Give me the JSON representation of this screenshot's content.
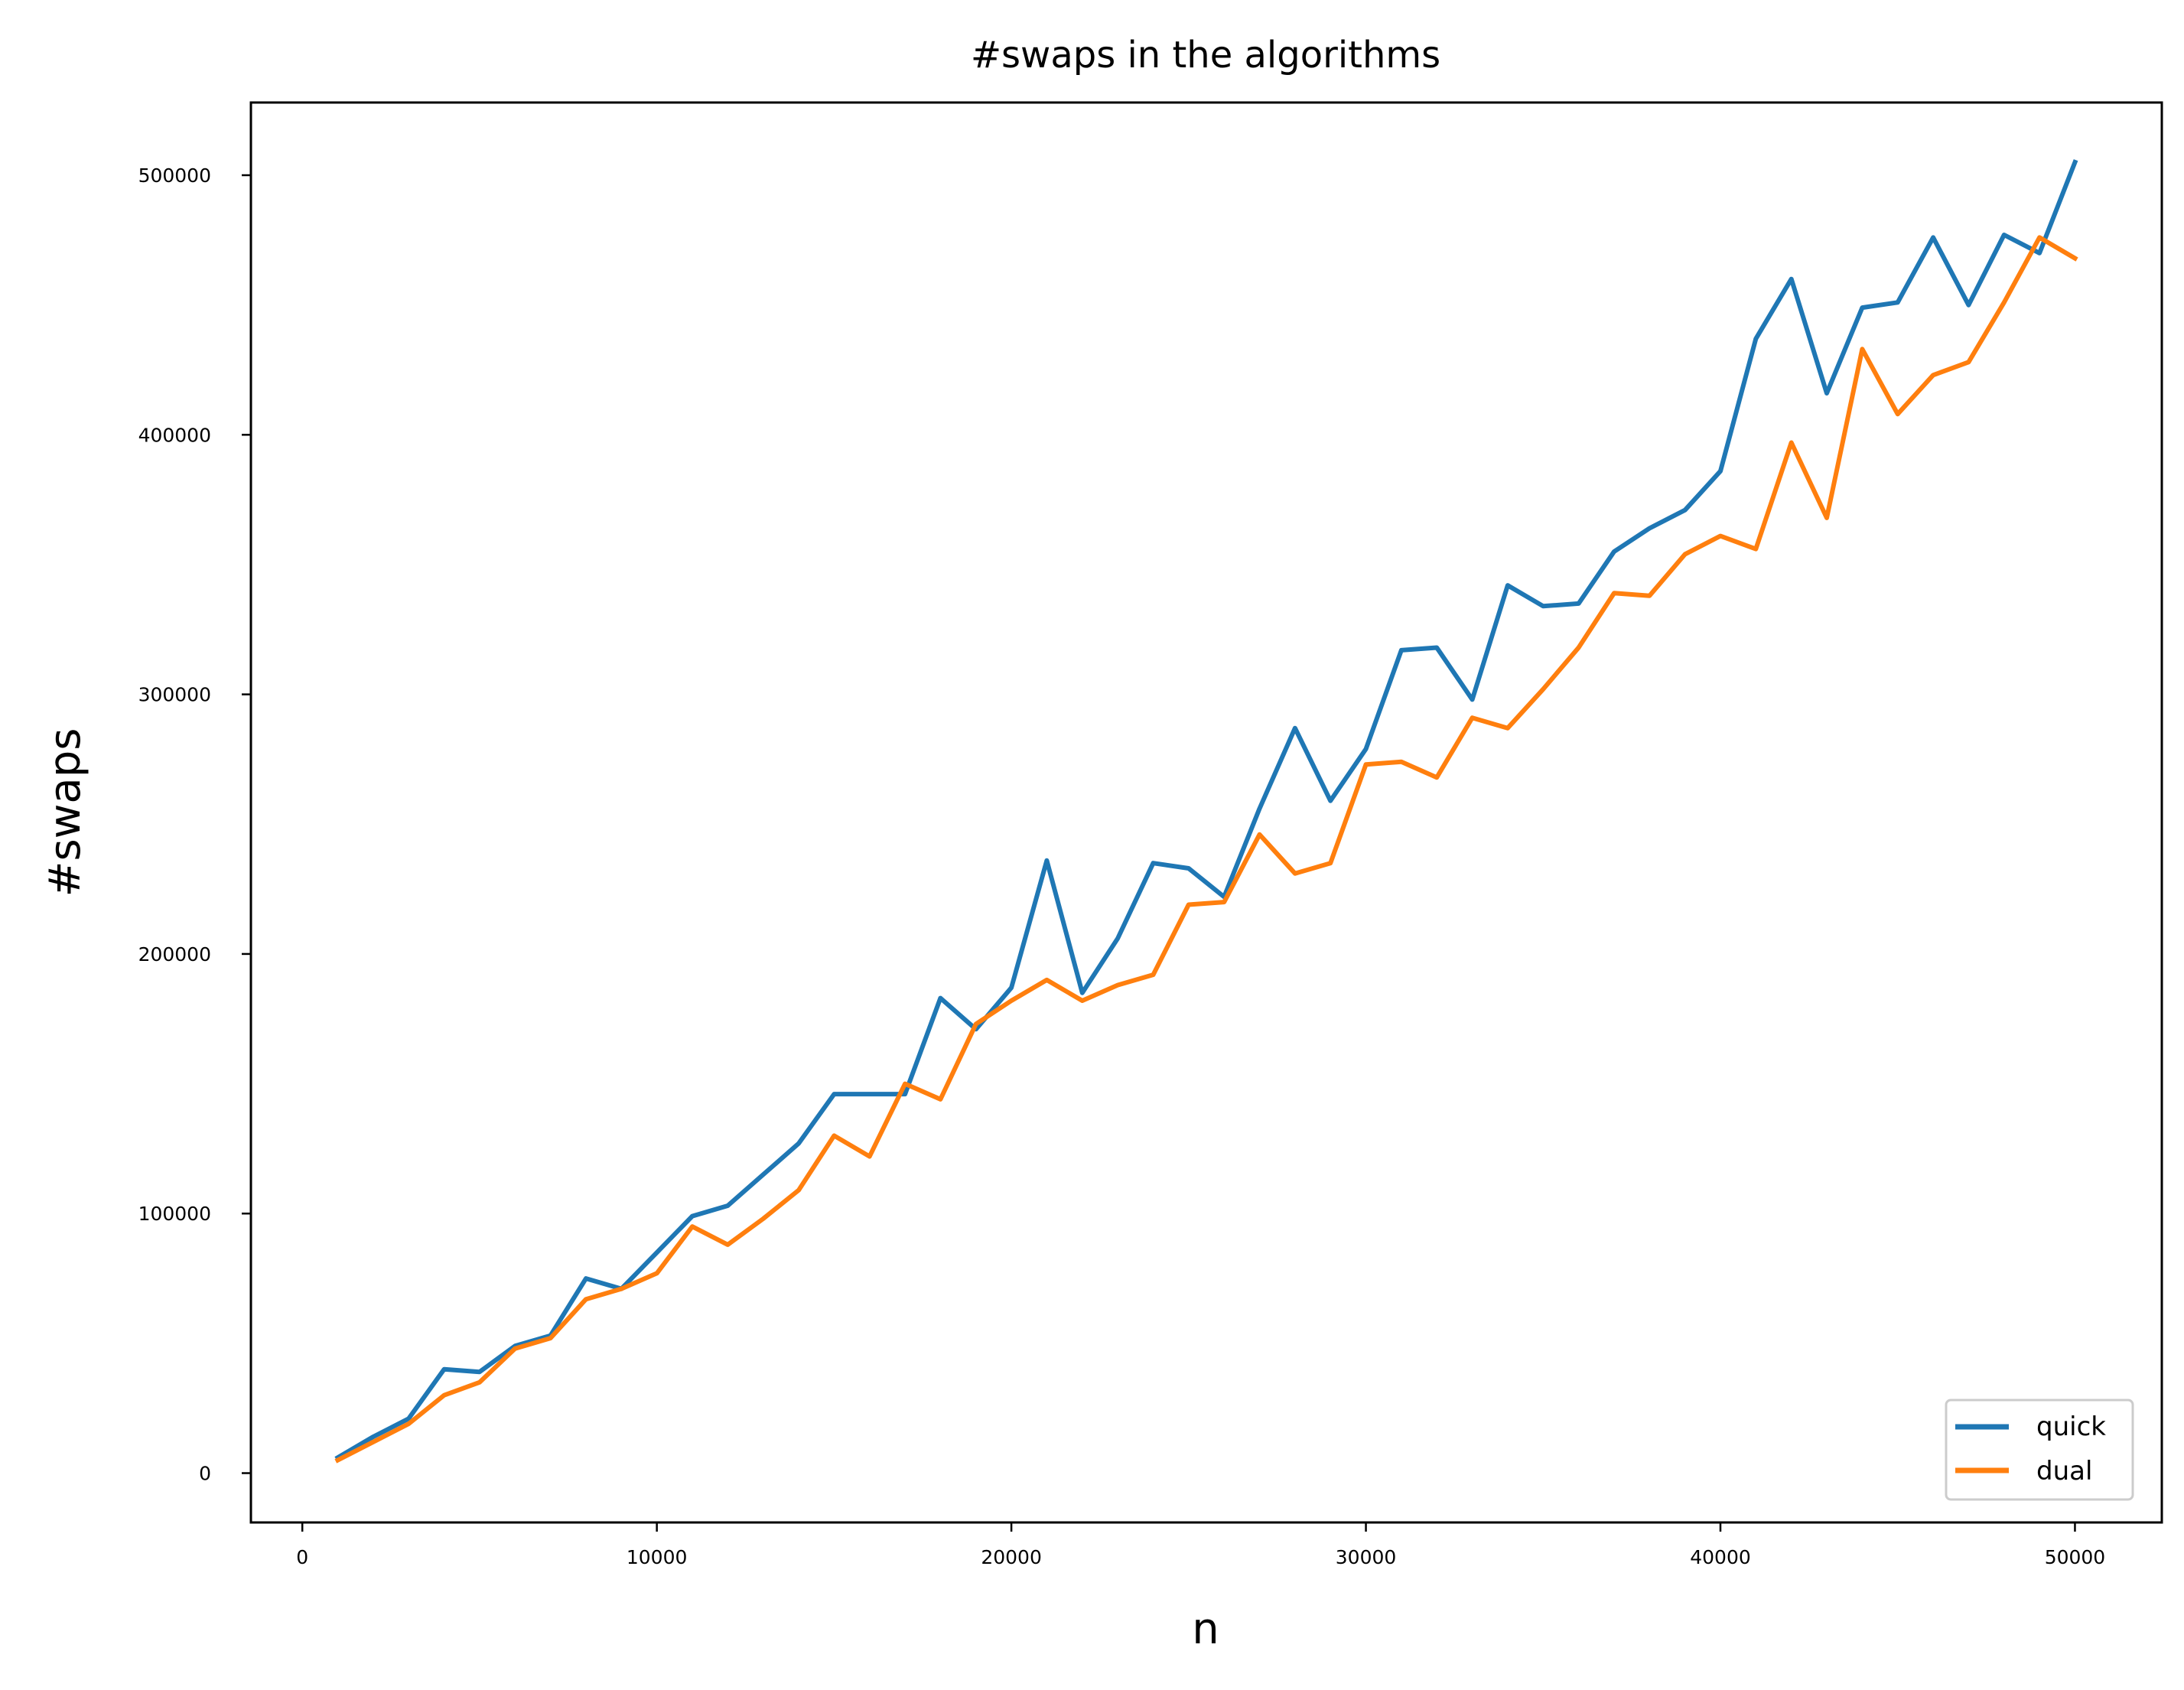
{
  "chart_data": {
    "type": "line",
    "title": "#swaps in the algorithms",
    "xlabel": "n",
    "ylabel": "#swaps",
    "xlim": [
      -1450,
      52450
    ],
    "ylim": [
      -19000,
      528000
    ],
    "x_ticks": [
      0,
      10000,
      20000,
      30000,
      40000,
      50000
    ],
    "y_ticks": [
      0,
      100000,
      200000,
      300000,
      400000,
      500000
    ],
    "x_tick_labels": [
      "0",
      "10000",
      "20000",
      "30000",
      "40000",
      "50000"
    ],
    "y_tick_labels": [
      "0",
      "100000",
      "200000",
      "300000",
      "400000",
      "500000"
    ],
    "grid": false,
    "legend_position": "lower right",
    "x": [
      1000,
      2000,
      3000,
      4000,
      5000,
      6000,
      7000,
      8000,
      9000,
      10000,
      11000,
      12000,
      13000,
      14000,
      15000,
      16000,
      17000,
      18000,
      19000,
      20000,
      21000,
      22000,
      23000,
      24000,
      25000,
      26000,
      27000,
      28000,
      29000,
      30000,
      31000,
      32000,
      33000,
      34000,
      35000,
      36000,
      37000,
      38000,
      39000,
      40000,
      41000,
      42000,
      43000,
      44000,
      45000,
      46000,
      47000,
      48000,
      49000,
      50000
    ],
    "series": [
      {
        "name": "quick",
        "color": "#1f77b4",
        "values": [
          6000,
          14000,
          21000,
          40000,
          39000,
          49000,
          53000,
          75000,
          71000,
          85000,
          99000,
          103000,
          115000,
          127000,
          146000,
          146000,
          146000,
          183000,
          171000,
          187000,
          236000,
          185000,
          206000,
          235000,
          233000,
          222000,
          256000,
          287000,
          259000,
          279000,
          317000,
          318000,
          298000,
          342000,
          334000,
          335000,
          355000,
          364000,
          371000,
          386000,
          437000,
          460000,
          416000,
          449000,
          451000,
          476000,
          450000,
          477000,
          470000,
          505000
        ]
      },
      {
        "name": "dual",
        "color": "#ff7f0e",
        "values": [
          5000,
          12000,
          19000,
          30000,
          35000,
          48000,
          52000,
          67000,
          71000,
          77000,
          95000,
          88000,
          98000,
          109000,
          130000,
          122000,
          150000,
          144000,
          173000,
          182000,
          190000,
          182000,
          188000,
          192000,
          219000,
          220000,
          246000,
          231000,
          235000,
          273000,
          274000,
          268000,
          291000,
          287000,
          302000,
          318000,
          339000,
          338000,
          354000,
          361000,
          356000,
          397000,
          368000,
          433000,
          408000,
          423000,
          428000,
          451000,
          476000,
          468000
        ]
      }
    ]
  }
}
